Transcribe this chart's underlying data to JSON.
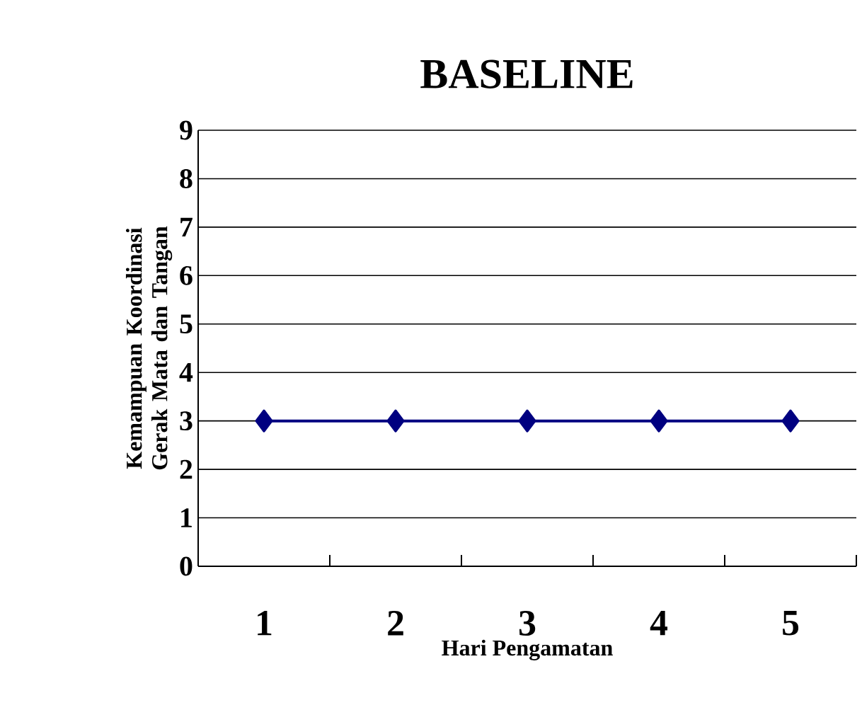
{
  "chart_data": {
    "type": "line",
    "title": "BASELINE",
    "xlabel": "Hari Pengamatan",
    "ylabel": "Kemampuan Koordinasi Gerak Mata dan Tangan",
    "categories": [
      "1",
      "2",
      "3",
      "4",
      "5"
    ],
    "values": [
      3,
      3,
      3,
      3,
      3
    ],
    "color": "#000080",
    "marker": "diamond",
    "line_style": "solid",
    "ylim": [
      0,
      9
    ],
    "yticks": [
      0,
      1,
      2,
      3,
      4,
      5,
      6,
      7,
      8,
      9
    ],
    "grid": "y"
  }
}
